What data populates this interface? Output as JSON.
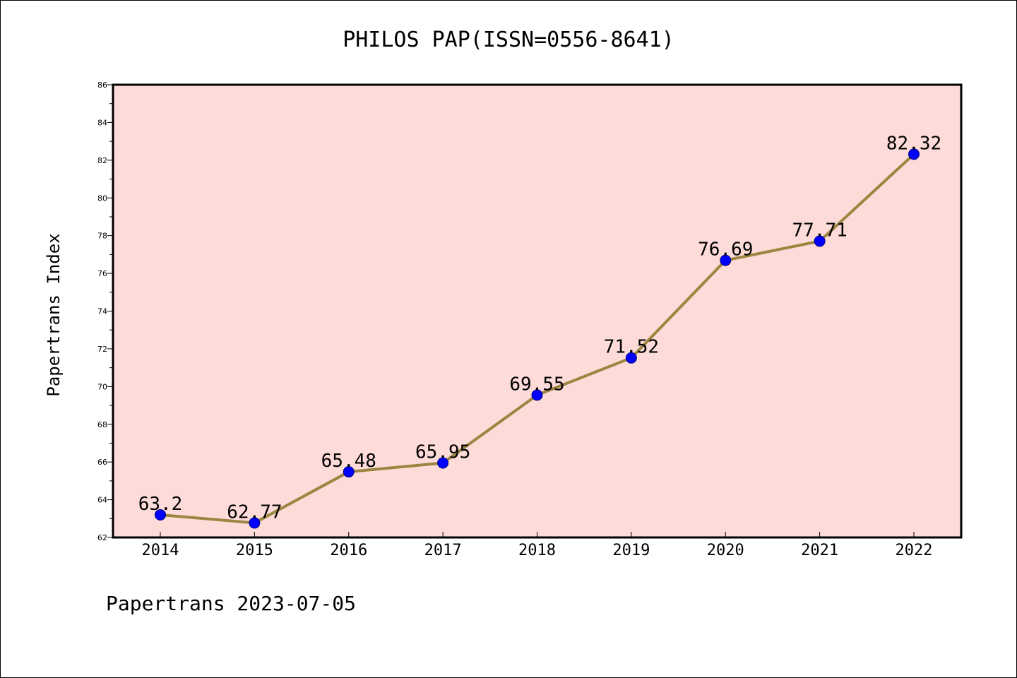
{
  "chart_data": {
    "type": "line",
    "title": "PHILOS PAP(ISSN=0556-8641)",
    "xlabel": "",
    "ylabel": "Papertrans Index",
    "footer": "Papertrans 2023-07-05",
    "categories": [
      "2014",
      "2015",
      "2016",
      "2017",
      "2018",
      "2019",
      "2020",
      "2021",
      "2022"
    ],
    "series": [
      {
        "values": [
          63.2,
          62.77,
          65.48,
          65.95,
          69.55,
          71.52,
          76.69,
          77.71,
          82.32
        ],
        "labels": [
          "63.2",
          "62.77",
          "65.48",
          "65.95",
          "69.55",
          "71.52",
          "76.69",
          "77.71",
          "82.32"
        ],
        "line_color": "#9b8540",
        "marker_color": "#0000ff"
      }
    ],
    "ylim": [
      62,
      86
    ],
    "y_ticks": [
      62,
      64,
      66,
      68,
      70,
      72,
      74,
      76,
      78,
      80,
      82,
      84,
      86
    ],
    "grid": false,
    "legend": "none",
    "plot_background": "#fddbd8"
  }
}
